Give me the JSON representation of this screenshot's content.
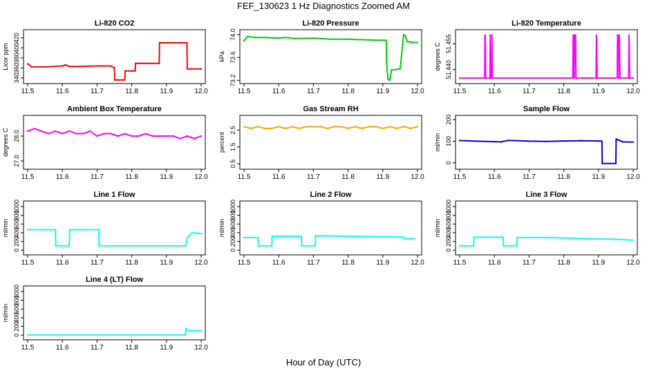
{
  "figure": {
    "title": "FEF_130623  1 Hz Diagnostics Zoomed AM",
    "xlabel": "Hour of Day (UTC)"
  },
  "chart_data": [
    {
      "type": "line",
      "title": "Li-820 CO2",
      "ylabel": "Licor ppm",
      "color": "#ff0000",
      "xlim": [
        11.5,
        12.0
      ],
      "xticks": [
        "11.5",
        "11.6",
        "11.7",
        "11.8",
        "11.9",
        "12.0"
      ],
      "ylim": [
        333,
        432
      ],
      "yticks": [
        "340",
        "360",
        "380",
        "400",
        "420"
      ],
      "x": [
        11.5,
        11.505,
        11.51,
        11.55,
        11.6,
        11.61,
        11.62,
        11.65,
        11.7,
        11.74,
        11.75,
        11.751,
        11.76,
        11.78,
        11.781,
        11.8,
        11.81,
        11.811,
        11.83,
        11.84,
        11.85,
        11.879,
        11.88,
        11.9,
        11.92,
        11.95,
        11.959,
        11.96,
        11.97,
        12.0
      ],
      "y": [
        368,
        366,
        362,
        362,
        364,
        366,
        363,
        363,
        364,
        364,
        360,
        336,
        336,
        336,
        354,
        354,
        354,
        369,
        369,
        369,
        369,
        369,
        410,
        410,
        410,
        410,
        410,
        358,
        358,
        358
      ]
    },
    {
      "type": "line",
      "title": "Li-820 Pressure",
      "ylabel": "kPa",
      "color": "#00cc00",
      "xlim": [
        11.5,
        12.0
      ],
      "xticks": [
        "11.5",
        "11.6",
        "11.7",
        "11.8",
        "11.9",
        "12.0"
      ],
      "ylim": [
        73.18,
        74.05
      ],
      "yticks": [
        "73.2",
        "73.6",
        "74.0"
      ],
      "x": [
        11.5,
        11.51,
        11.53,
        11.56,
        11.6,
        11.62,
        11.65,
        11.7,
        11.75,
        11.8,
        11.85,
        11.9,
        11.91,
        11.911,
        11.915,
        11.92,
        11.925,
        11.95,
        11.96,
        11.965,
        11.97,
        11.98,
        12.0
      ],
      "y": [
        73.89,
        73.97,
        73.95,
        73.95,
        73.94,
        73.95,
        73.93,
        73.94,
        73.92,
        73.92,
        73.91,
        73.9,
        73.9,
        73.5,
        73.22,
        73.2,
        73.38,
        73.4,
        74.0,
        73.98,
        73.88,
        73.87,
        73.86
      ]
    },
    {
      "type": "line",
      "title": "Li-820 Temperature",
      "ylabel": "degrees C",
      "color": "#ff00ff",
      "xlim": [
        11.5,
        12.0
      ],
      "xticks": [
        "11.5",
        "11.6",
        "11.7",
        "11.8",
        "11.9",
        "12.0"
      ],
      "ylim": [
        51.433,
        51.462
      ],
      "yticks": [
        "51.440",
        "51.455"
      ],
      "x": [
        11.5,
        11.572,
        11.573,
        11.574,
        11.575,
        11.587,
        11.588,
        11.589,
        11.592,
        11.593,
        11.594,
        11.826,
        11.827,
        11.829,
        11.83,
        11.831,
        11.834,
        11.835,
        11.837,
        11.893,
        11.894,
        11.896,
        11.954,
        11.955,
        11.958,
        11.959,
        11.96,
        11.962,
        11.987,
        11.988,
        11.99,
        12.0
      ],
      "y": [
        51.435,
        51.435,
        51.46,
        51.46,
        51.435,
        51.435,
        51.46,
        51.435,
        51.435,
        51.46,
        51.435,
        51.435,
        51.46,
        51.46,
        51.435,
        51.46,
        51.46,
        51.435,
        51.435,
        51.435,
        51.46,
        51.435,
        51.435,
        51.46,
        51.46,
        51.435,
        51.46,
        51.435,
        51.435,
        51.46,
        51.435,
        51.435
      ]
    },
    {
      "type": "line",
      "title": "Ambient Box Temperature",
      "ylabel": "degrees C",
      "color": "#ff00ff",
      "xlim": [
        11.5,
        12.0
      ],
      "xticks": [
        "11.5",
        "11.6",
        "11.7",
        "11.8",
        "11.9",
        "12.0"
      ],
      "ylim": [
        26.75,
        28.75
      ],
      "yticks": [
        "27.0",
        "28.0"
      ],
      "x": [
        11.5,
        11.52,
        11.54,
        11.56,
        11.58,
        11.6,
        11.62,
        11.64,
        11.66,
        11.68,
        11.7,
        11.72,
        11.74,
        11.76,
        11.78,
        11.8,
        11.82,
        11.84,
        11.86,
        11.88,
        11.9,
        11.92,
        11.94,
        11.96,
        11.98,
        12.0
      ],
      "y": [
        28.2,
        28.3,
        28.2,
        28.1,
        28.2,
        28.1,
        28.2,
        28.1,
        28.1,
        28.2,
        28.0,
        28.1,
        28.1,
        28.0,
        28.1,
        28.0,
        28.0,
        28.1,
        28.0,
        28.0,
        28.0,
        28.0,
        27.9,
        28.0,
        27.9,
        28.0
      ]
    },
    {
      "type": "line",
      "title": "Gas Stream RH",
      "ylabel": "percent",
      "color": "#ffa500",
      "xlim": [
        11.5,
        12.0
      ],
      "xticks": [
        "11.5",
        "11.6",
        "11.7",
        "11.8",
        "11.9",
        "12.0"
      ],
      "ylim": [
        0.3,
        3.25
      ],
      "yticks": [
        "0.5",
        "1.5",
        "2.5"
      ],
      "x": [
        11.5,
        11.52,
        11.54,
        11.56,
        11.58,
        11.6,
        11.62,
        11.64,
        11.66,
        11.68,
        11.7,
        11.72,
        11.74,
        11.76,
        11.78,
        11.8,
        11.82,
        11.84,
        11.86,
        11.88,
        11.9,
        11.92,
        11.94,
        11.96,
        11.98,
        12.0
      ],
      "y": [
        2.7,
        2.6,
        2.7,
        2.6,
        2.6,
        2.7,
        2.6,
        2.7,
        2.6,
        2.7,
        2.7,
        2.7,
        2.6,
        2.7,
        2.7,
        2.6,
        2.7,
        2.6,
        2.7,
        2.7,
        2.6,
        2.7,
        2.6,
        2.7,
        2.6,
        2.7
      ]
    },
    {
      "type": "line",
      "title": "Sample Flow",
      "ylabel": "ml/min",
      "color": "#0000dd",
      "xlim": [
        11.5,
        12.0
      ],
      "xticks": [
        "11.5",
        "11.6",
        "11.7",
        "11.8",
        "11.9",
        "12.0"
      ],
      "ylim": [
        -20,
        210
      ],
      "yticks": [
        "0",
        "100",
        "200"
      ],
      "x": [
        11.5,
        11.55,
        11.6,
        11.62,
        11.64,
        11.7,
        11.75,
        11.8,
        11.85,
        11.9,
        11.91,
        11.911,
        11.95,
        11.951,
        11.96,
        11.97,
        12.0
      ],
      "y": [
        103,
        100,
        98,
        97,
        104,
        100,
        99,
        101,
        102,
        101,
        100,
        -3,
        -3,
        110,
        104,
        97,
        96
      ]
    },
    {
      "type": "line",
      "title": "Line 1 Flow",
      "ylabel": "ml/min",
      "color": "#00ffff",
      "xlim": [
        11.5,
        12.0
      ],
      "xticks": [
        "11.5",
        "11.6",
        "11.7",
        "11.8",
        "11.9",
        "12.0"
      ],
      "ylim": [
        -60,
        1080
      ],
      "yticks": [
        "0",
        "200",
        "400",
        "600",
        "800",
        "1000"
      ],
      "x": [
        11.5,
        11.58,
        11.581,
        11.62,
        11.621,
        11.705,
        11.706,
        11.955,
        11.96,
        11.97,
        11.98,
        11.99,
        12.0
      ],
      "y": [
        470,
        470,
        100,
        100,
        470,
        470,
        100,
        100,
        280,
        380,
        400,
        390,
        380
      ]
    },
    {
      "type": "line",
      "title": "Line 2 Flow",
      "ylabel": "ml/min",
      "color": "#00ffff",
      "xlim": [
        11.5,
        12.0
      ],
      "xticks": [
        "11.5",
        "11.6",
        "11.7",
        "11.8",
        "11.9",
        "12.0"
      ],
      "ylim": [
        -60,
        1080
      ],
      "yticks": [
        "0",
        "200",
        "400",
        "600",
        "800",
        "1000"
      ],
      "x": [
        11.5,
        11.54,
        11.541,
        11.58,
        11.581,
        11.665,
        11.666,
        11.705,
        11.706,
        11.8,
        11.9,
        11.96,
        11.961,
        11.99
      ],
      "y": [
        290,
        290,
        100,
        100,
        320,
        320,
        100,
        100,
        330,
        320,
        310,
        300,
        260,
        270
      ]
    },
    {
      "type": "line",
      "title": "Line 3 Flow",
      "ylabel": "ml/min",
      "color": "#00ffff",
      "xlim": [
        11.5,
        12.0
      ],
      "xticks": [
        "11.5",
        "11.6",
        "11.7",
        "11.8",
        "11.9",
        "12.0"
      ],
      "ylim": [
        -60,
        1080
      ],
      "yticks": [
        "0",
        "200",
        "400",
        "600",
        "800",
        "1000"
      ],
      "x": [
        11.5,
        11.54,
        11.541,
        11.625,
        11.626,
        11.665,
        11.666,
        11.75,
        11.85,
        11.95,
        11.999
      ],
      "y": [
        100,
        100,
        300,
        300,
        100,
        100,
        290,
        290,
        270,
        250,
        230
      ]
    },
    {
      "type": "line",
      "title": "Line 4 (LT) Flow",
      "ylabel": "ml/min",
      "color": "#00ffff",
      "xlim": [
        11.5,
        12.0
      ],
      "xticks": [
        "11.5",
        "11.6",
        "11.7",
        "11.8",
        "11.9",
        "12.0"
      ],
      "ylim": [
        -60,
        1080
      ],
      "yticks": [
        "0",
        "200",
        "400",
        "600",
        "800",
        "1000"
      ],
      "x": [
        11.5,
        11.6,
        11.7,
        11.8,
        11.9,
        11.955,
        11.956,
        11.96,
        11.97,
        12.0
      ],
      "y": [
        5,
        5,
        5,
        5,
        5,
        5,
        160,
        120,
        100,
        100
      ]
    }
  ]
}
